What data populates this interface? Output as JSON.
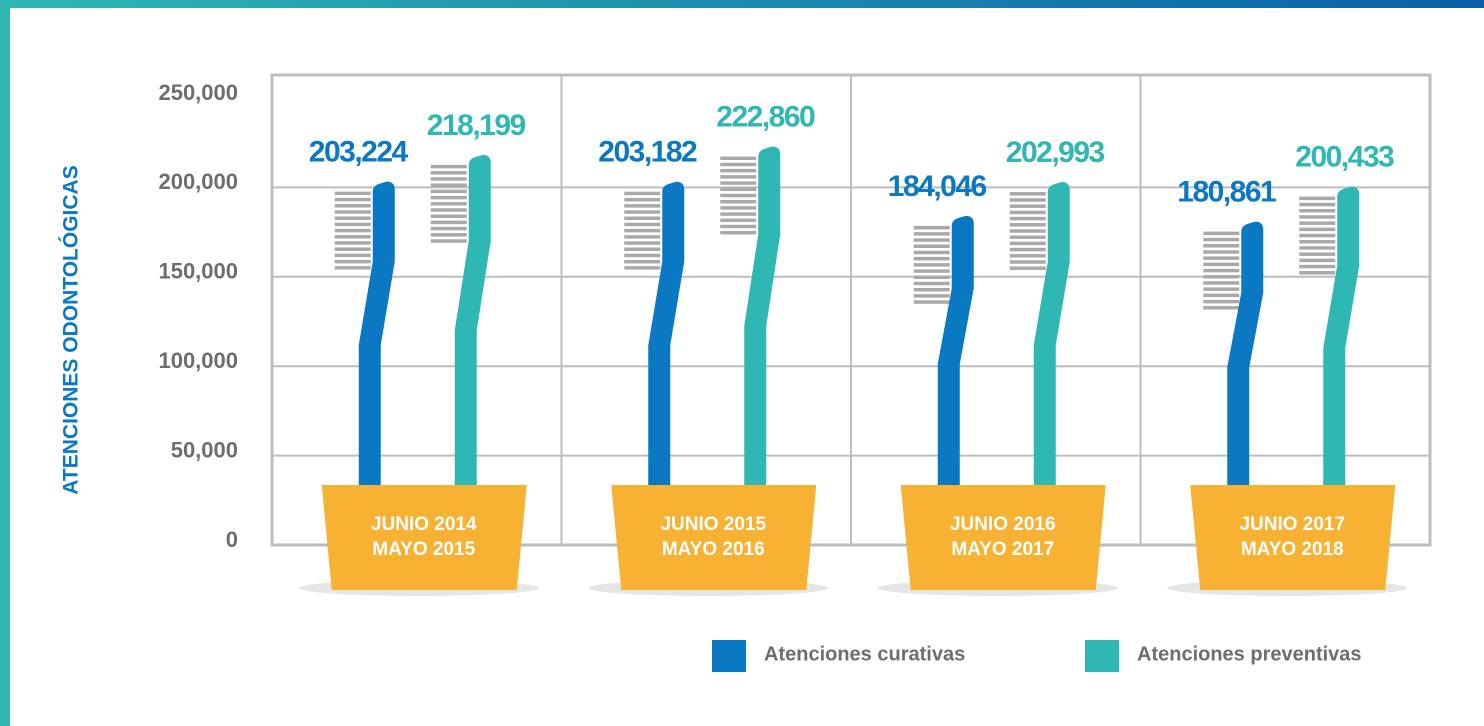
{
  "chart_data": {
    "type": "toothbrush-bar",
    "y_label": "ATENCIONES ODONTOLÓGICAS",
    "categories": [
      [
        "JUNIO 2014",
        "MAYO 2015"
      ],
      [
        "JUNIO 2015",
        "MAYO 2016"
      ],
      [
        "JUNIO 2016",
        "MAYO 2017"
      ],
      [
        "JUNIO 2017",
        "MAYO 2018"
      ]
    ],
    "series": [
      {
        "name": "Atenciones curativas",
        "color": "#0a78c2",
        "values": [
          203224,
          203182,
          184046,
          180861
        ],
        "value_labels": [
          "203,224",
          "203,182",
          "184,046",
          "180,861"
        ]
      },
      {
        "name": "Atenciones preventivas",
        "color": "#2fb7b3",
        "values": [
          218199,
          222860,
          202993,
          200433
        ],
        "value_labels": [
          "218,199",
          "222,860",
          "202,993",
          "200,433"
        ]
      }
    ],
    "ylim": [
      0,
      250000
    ],
    "yticks": [
      0,
      {
        "value": 50000,
        "label": "50,000"
      },
      {
        "value": 100000,
        "label": "100,000"
      },
      {
        "value": 150000,
        "label": "150,000"
      },
      {
        "value": 200000,
        "label": "200,000"
      },
      {
        "value": 250000,
        "label": "250,000"
      }
    ],
    "grid": true
  }
}
